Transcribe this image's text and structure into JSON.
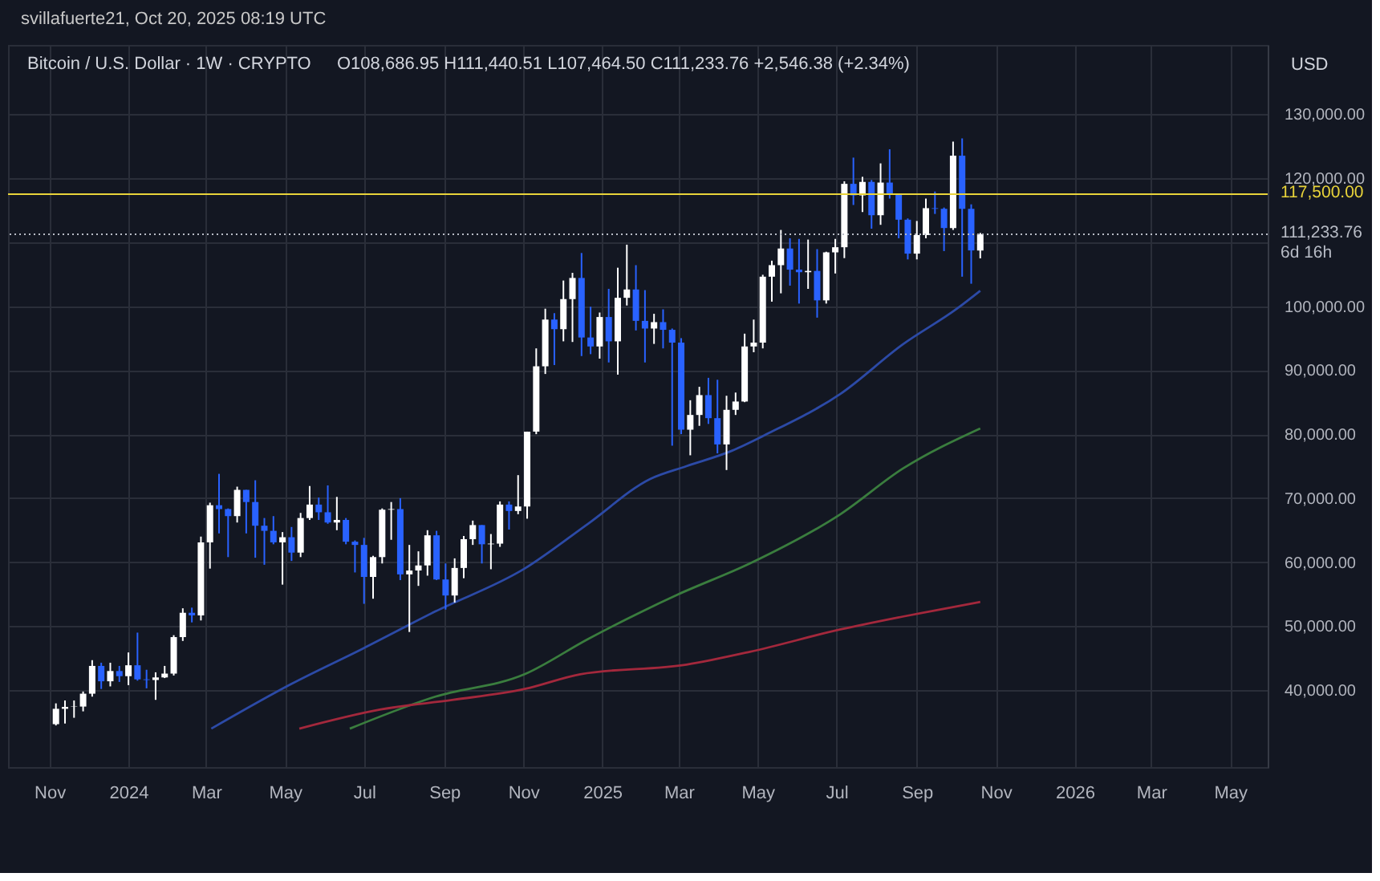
{
  "chart_data": {
    "type": "candlestick",
    "title": "Bitcoin / U.S. Dollar · 1W · CRYPTO",
    "subtitle": "O108,686.95  H111,440.51  L107,464.50  C111,233.76  +2,546.38 (+2.34%)",
    "ylabel": "USD",
    "annotations": [
      "svillafuerte21, Oct 20, 2025 08:19 UTC"
    ],
    "xlim": [
      "2023-09-30",
      "2026-05-30"
    ],
    "xticks": [
      {
        "value": "2023-11-01",
        "label": "Nov"
      },
      {
        "value": "2024-01-01",
        "label": "2024"
      },
      {
        "value": "2024-03-01",
        "label": "Mar"
      },
      {
        "value": "2024-05-01",
        "label": "May"
      },
      {
        "value": "2024-07-01",
        "label": "Jul"
      },
      {
        "value": "2024-09-01",
        "label": "Sep"
      },
      {
        "value": "2024-11-01",
        "label": "Nov"
      },
      {
        "value": "2025-01-01",
        "label": "2025"
      },
      {
        "value": "2025-03-01",
        "label": "Mar"
      },
      {
        "value": "2025-05-01",
        "label": "May"
      },
      {
        "value": "2025-07-01",
        "label": "Jul"
      },
      {
        "value": "2025-09-01",
        "label": "Sep"
      },
      {
        "value": "2025-11-01",
        "label": "Nov"
      },
      {
        "value": "2026-01-01",
        "label": "2026"
      },
      {
        "value": "2026-03-01",
        "label": "Mar"
      },
      {
        "value": "2026-05-01",
        "label": "May"
      }
    ],
    "ylim": [
      28000,
      140800
    ],
    "yticks": [
      {
        "value": 40000,
        "label": "40,000.00"
      },
      {
        "value": 50000,
        "label": "50,000.00"
      },
      {
        "value": 60000,
        "label": "60,000.00"
      },
      {
        "value": 70000,
        "label": "70,000.00"
      },
      {
        "value": 80000,
        "label": "80,000.00"
      },
      {
        "value": 90000,
        "label": "90,000.00"
      },
      {
        "value": 100000,
        "label": "100,000.00"
      },
      {
        "value": 110000,
        "label": null
      },
      {
        "value": 120000,
        "label": "120,000.00"
      },
      {
        "value": 130000,
        "label": "130,000.00"
      }
    ],
    "grid": true,
    "ref_lines": [
      {
        "axis": "y",
        "value": 117500,
        "label": "117,500.00",
        "color": "#e8d33a",
        "line_style": "solid"
      },
      {
        "axis": "y",
        "value": 111233.76,
        "label": "111,233.76\n6d 16h",
        "color": "#b8bcc6",
        "line_style": "dotted"
      }
    ],
    "series": [
      {
        "type": "candlestick",
        "colors": [
          "#ffffff",
          "#ffffff",
          "#ffffff",
          "#ffffff",
          "#ffffff",
          "#2962ff",
          "#ffffff",
          "#2962ff",
          "#ffffff",
          "#2962ff",
          "#2962ff",
          "#ffffff",
          "#ffffff",
          "#ffffff",
          "#ffffff",
          "#2962ff",
          "#ffffff",
          "#ffffff",
          "#2962ff",
          "#2962ff",
          "#ffffff",
          "#2962ff",
          "#2962ff",
          "#2962ff",
          "#2962ff",
          "#ffffff",
          "#2962ff",
          "#ffffff",
          "#ffffff",
          "#2962ff",
          "#2962ff",
          "#ffffff",
          "#2962ff",
          "#2962ff",
          "#2962ff",
          "#ffffff",
          "#ffffff",
          "#ffffff",
          "#2962ff",
          "#ffffff",
          "#ffffff",
          "#ffffff",
          "#2962ff",
          "#2962ff",
          "#ffffff",
          "#ffffff",
          "#ffffff",
          "#2962ff",
          "#ffffff",
          "#ffffff",
          "#2962ff",
          "#ffffff",
          "#ffffff",
          "#ffffff",
          "#ffffff",
          "#2962ff",
          "#ffffff",
          "#ffffff",
          "#2962ff",
          "#2962ff",
          "#ffffff",
          "#2962ff",
          "#ffffff",
          "#ffffff",
          "#2962ff",
          "#2962ff",
          "#ffffff",
          "#2962ff",
          "#2962ff",
          "#2962ff",
          "#ffffff",
          "#ffffff",
          "#2962ff",
          "#2962ff",
          "#ffffff",
          "#ffffff",
          "#ffffff",
          "#ffffff",
          "#ffffff",
          "#ffffff",
          "#ffffff",
          "#2962ff",
          "#2962ff",
          "#ffffff",
          "#2962ff",
          "#ffffff",
          "#ffffff",
          "#ffffff",
          "#2962ff",
          "#ffffff",
          "#2962ff",
          "#ffffff",
          "#2962ff",
          "#2962ff",
          "#2962ff",
          "#ffffff",
          "#ffffff",
          "#2962ff",
          "#2962ff",
          "#ffffff",
          "#2962ff",
          "#2962ff",
          "#ffffff"
        ],
        "x": [
          "2023-11-06",
          "2023-11-13",
          "2023-11-20",
          "2023-11-27",
          "2023-12-04",
          "2023-12-11",
          "2023-12-18",
          "2023-12-25",
          "2024-01-01",
          "2024-01-08",
          "2024-01-15",
          "2024-01-22",
          "2024-01-29",
          "2024-02-05",
          "2024-02-12",
          "2024-02-19",
          "2024-02-26",
          "2024-03-04",
          "2024-03-11",
          "2024-03-18",
          "2024-03-25",
          "2024-04-01",
          "2024-04-08",
          "2024-04-15",
          "2024-04-22",
          "2024-04-29",
          "2024-05-06",
          "2024-05-13",
          "2024-05-20",
          "2024-05-27",
          "2024-06-03",
          "2024-06-10",
          "2024-06-17",
          "2024-06-24",
          "2024-07-01",
          "2024-07-08",
          "2024-07-15",
          "2024-07-22",
          "2024-07-29",
          "2024-08-05",
          "2024-08-12",
          "2024-08-19",
          "2024-08-26",
          "2024-09-02",
          "2024-09-09",
          "2024-09-16",
          "2024-09-23",
          "2024-09-30",
          "2024-10-07",
          "2024-10-14",
          "2024-10-21",
          "2024-10-28",
          "2024-11-04",
          "2024-11-11",
          "2024-11-18",
          "2024-11-25",
          "2024-12-02",
          "2024-12-09",
          "2024-12-16",
          "2024-12-23",
          "2024-12-30",
          "2025-01-06",
          "2025-01-13",
          "2025-01-20",
          "2025-01-27",
          "2025-02-03",
          "2025-02-10",
          "2025-02-17",
          "2025-02-24",
          "2025-03-03",
          "2025-03-10",
          "2025-03-17",
          "2025-03-24",
          "2025-03-31",
          "2025-04-07",
          "2025-04-14",
          "2025-04-21",
          "2025-04-28",
          "2025-05-05",
          "2025-05-12",
          "2025-05-19",
          "2025-05-26",
          "2025-06-02",
          "2025-06-09",
          "2025-06-16",
          "2025-06-23",
          "2025-06-30",
          "2025-07-07",
          "2025-07-14",
          "2025-07-21",
          "2025-07-28",
          "2025-08-04",
          "2025-08-11",
          "2025-08-18",
          "2025-08-25",
          "2025-09-01",
          "2025-09-08",
          "2025-09-15",
          "2025-09-22",
          "2025-09-29",
          "2025-10-06",
          "2025-10-13",
          "2025-10-20"
        ],
        "ohlc": [
          [
            34700,
            37950,
            34500,
            37100
          ],
          [
            37100,
            38400,
            34800,
            37400
          ],
          [
            37400,
            38400,
            35700,
            37450
          ],
          [
            37450,
            39800,
            36700,
            39460
          ],
          [
            39460,
            44700,
            39000,
            43800
          ],
          [
            43800,
            44300,
            40200,
            41400
          ],
          [
            41400,
            44300,
            40600,
            43000
          ],
          [
            43000,
            43800,
            41300,
            42200
          ],
          [
            42200,
            45900,
            40800,
            43900
          ],
          [
            43900,
            49000,
            41500,
            41700
          ],
          [
            41700,
            43200,
            40300,
            41600
          ],
          [
            41600,
            42800,
            38500,
            42000
          ],
          [
            42000,
            43800,
            41900,
            42600
          ],
          [
            42600,
            48600,
            42300,
            48300
          ],
          [
            48300,
            52800,
            47700,
            52100
          ],
          [
            52100,
            52900,
            50600,
            51700
          ],
          [
            51700,
            64000,
            50900,
            63100
          ],
          [
            63100,
            69300,
            59000,
            68900
          ],
          [
            68900,
            73800,
            64500,
            68300
          ],
          [
            68300,
            68400,
            60800,
            67200
          ],
          [
            67200,
            71800,
            66200,
            71300
          ],
          [
            71300,
            71300,
            64500,
            69400
          ],
          [
            69400,
            72800,
            60700,
            65700
          ],
          [
            65700,
            66900,
            59600,
            64900
          ],
          [
            64900,
            67200,
            62800,
            63100
          ],
          [
            63100,
            64700,
            56500,
            63900
          ],
          [
            63900,
            65500,
            60200,
            61500
          ],
          [
            61500,
            67700,
            60800,
            66900
          ],
          [
            66900,
            71900,
            66600,
            69000
          ],
          [
            69000,
            70100,
            66600,
            67800
          ],
          [
            67800,
            72000,
            66000,
            66200
          ],
          [
            66200,
            70200,
            65000,
            66600
          ],
          [
            66600,
            66900,
            62800,
            63200
          ],
          [
            63200,
            63400,
            58400,
            62700
          ],
          [
            62700,
            63800,
            53500,
            57700
          ],
          [
            57700,
            61000,
            54300,
            60800
          ],
          [
            60800,
            68400,
            59800,
            68200
          ],
          [
            68200,
            69400,
            63500,
            68300
          ],
          [
            68300,
            70000,
            57200,
            58100
          ],
          [
            58100,
            62700,
            49100,
            58700
          ],
          [
            58700,
            61700,
            56300,
            59500
          ],
          [
            59500,
            65000,
            57900,
            64200
          ],
          [
            64200,
            64900,
            57200,
            57300
          ],
          [
            57300,
            59800,
            52600,
            54800
          ],
          [
            54800,
            60600,
            53700,
            59100
          ],
          [
            59100,
            64100,
            57500,
            63600
          ],
          [
            63600,
            66500,
            62700,
            65800
          ],
          [
            65800,
            65800,
            59800,
            62800
          ],
          [
            62800,
            64400,
            58900,
            62900
          ],
          [
            62900,
            69500,
            62400,
            69000
          ],
          [
            69000,
            69500,
            65100,
            68000
          ],
          [
            68000,
            73600,
            67500,
            68700
          ],
          [
            68700,
            80400,
            66800,
            80400
          ],
          [
            80400,
            93400,
            80000,
            90600
          ],
          [
            90600,
            99600,
            89400,
            97900
          ],
          [
            97900,
            98900,
            90800,
            96400
          ],
          [
            96400,
            104000,
            94500,
            101100
          ],
          [
            101100,
            105200,
            94400,
            104400
          ],
          [
            104400,
            108300,
            92200,
            95100
          ],
          [
            95100,
            99900,
            92500,
            93700
          ],
          [
            93700,
            99000,
            91800,
            98300
          ],
          [
            98300,
            102700,
            91200,
            94500
          ],
          [
            94500,
            106000,
            89300,
            101300
          ],
          [
            101300,
            109600,
            100100,
            102600
          ],
          [
            102600,
            106400,
            96200,
            97700
          ],
          [
            97700,
            102500,
            91200,
            96500
          ],
          [
            96500,
            98800,
            94100,
            97500
          ],
          [
            97500,
            99500,
            93400,
            96300
          ],
          [
            96300,
            96500,
            78200,
            94300
          ],
          [
            94300,
            95000,
            80000,
            80700
          ],
          [
            80700,
            85300,
            76700,
            83000
          ],
          [
            83000,
            87400,
            81300,
            86100
          ],
          [
            86100,
            88800,
            81600,
            82500
          ],
          [
            82500,
            88500,
            77000,
            78400
          ],
          [
            78400,
            86000,
            74400,
            83800
          ],
          [
            83800,
            86500,
            83000,
            85100
          ],
          [
            85100,
            95700,
            85000,
            93700
          ],
          [
            93700,
            97900,
            92800,
            94300
          ],
          [
            94300,
            104900,
            93400,
            104600
          ],
          [
            104600,
            107100,
            100700,
            106400
          ],
          [
            106400,
            111900,
            102000,
            109000
          ],
          [
            109000,
            110600,
            103200,
            105700
          ],
          [
            105700,
            110500,
            100400,
            105300
          ],
          [
            105300,
            110400,
            102700,
            105500
          ],
          [
            105500,
            108900,
            98200,
            100900
          ],
          [
            100900,
            108500,
            100400,
            108400
          ],
          [
            108400,
            110500,
            105100,
            109200
          ],
          [
            109200,
            119500,
            107500,
            119100
          ],
          [
            119100,
            123200,
            115800,
            117300
          ],
          [
            117300,
            120200,
            114700,
            119400
          ],
          [
            119400,
            119700,
            112100,
            114200
          ],
          [
            114200,
            122300,
            112700,
            119300
          ],
          [
            119300,
            124500,
            116800,
            117400
          ],
          [
            117400,
            117600,
            110600,
            113500
          ],
          [
            113500,
            113700,
            107300,
            108200
          ],
          [
            108200,
            113300,
            107300,
            111100
          ],
          [
            111100,
            116800,
            110600,
            115300
          ],
          [
            115300,
            117900,
            114400,
            115200
          ],
          [
            115200,
            115400,
            108600,
            112200
          ],
          [
            112200,
            125700,
            111900,
            123500
          ],
          [
            123500,
            126200,
            104600,
            115200
          ],
          [
            115200,
            115900,
            103500,
            108700
          ],
          [
            108686.95,
            111440.51,
            107464.5,
            111233.76
          ]
        ]
      },
      {
        "type": "line",
        "color": "#2c4aa6",
        "x": [
          "2024-03-05",
          "2024-05-06",
          "2024-06-30",
          "2024-08-25",
          "2024-11-02",
          "2024-12-21",
          "2025-02-07",
          "2025-03-07",
          "2025-04-11",
          "2025-05-08",
          "2025-07-04",
          "2025-08-21",
          "2025-10-02",
          "2025-10-20"
        ],
        "values": [
          34000,
          41000,
          46500,
          52300,
          59000,
          66000,
          73000,
          75000,
          77400,
          80000,
          86300,
          94000,
          99600,
          102400
        ]
      },
      {
        "type": "line",
        "color": "#3a7d3e",
        "x": [
          "2024-06-20",
          "2024-08-25",
          "2024-11-02",
          "2024-12-21",
          "2025-03-01",
          "2025-04-25",
          "2025-07-04",
          "2025-08-21",
          "2025-10-20"
        ],
        "values": [
          34000,
          39000,
          42500,
          48000,
          55000,
          59800,
          67500,
          74600,
          80900
        ]
      },
      {
        "type": "line",
        "color": "#a3283c",
        "x": [
          "2024-05-12",
          "2024-07-14",
          "2024-09-08",
          "2024-11-02",
          "2024-12-15",
          "2025-03-07",
          "2025-04-25",
          "2025-07-04",
          "2025-08-21",
          "2025-10-20"
        ],
        "values": [
          34000,
          37000,
          38500,
          40200,
          42500,
          44000,
          46000,
          49500,
          51500,
          53800
        ]
      }
    ]
  }
}
